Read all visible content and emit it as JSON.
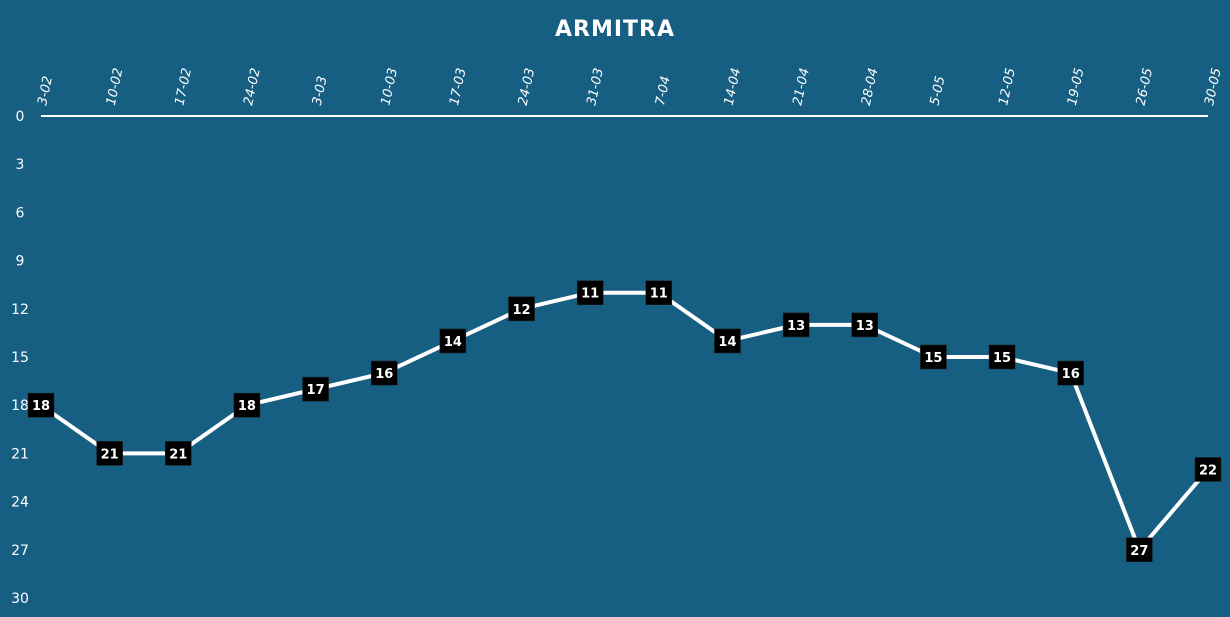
{
  "chart_data": {
    "type": "line",
    "title": "ARMITRA",
    "xlabel": "",
    "ylabel": "",
    "categories": [
      "3-02",
      "10-02",
      "17-02",
      "24-02",
      "3-03",
      "10-03",
      "17-03",
      "24-03",
      "31-03",
      "7-04",
      "14-04",
      "21-04",
      "28-04",
      "5-05",
      "12-05",
      "19-05",
      "26-05",
      "30-05"
    ],
    "series": [
      {
        "values": [
          18,
          21,
          21,
          18,
          17,
          16,
          14,
          12,
          11,
          11,
          14,
          13,
          13,
          15,
          15,
          16,
          27,
          22
        ]
      }
    ],
    "ylim": [
      0,
      30
    ],
    "y_inverted": true,
    "y_ticks": [
      "0",
      "3",
      "6",
      "9",
      "12",
      "15",
      "18",
      "21",
      "24",
      "27",
      "30"
    ],
    "x_axis_position": "top",
    "grid": "vertical drop lines",
    "legend": "none"
  },
  "colors": {
    "background": "#165e82",
    "line": "#ffffff",
    "label_box": "#000000",
    "label_text": "#ffffff"
  }
}
